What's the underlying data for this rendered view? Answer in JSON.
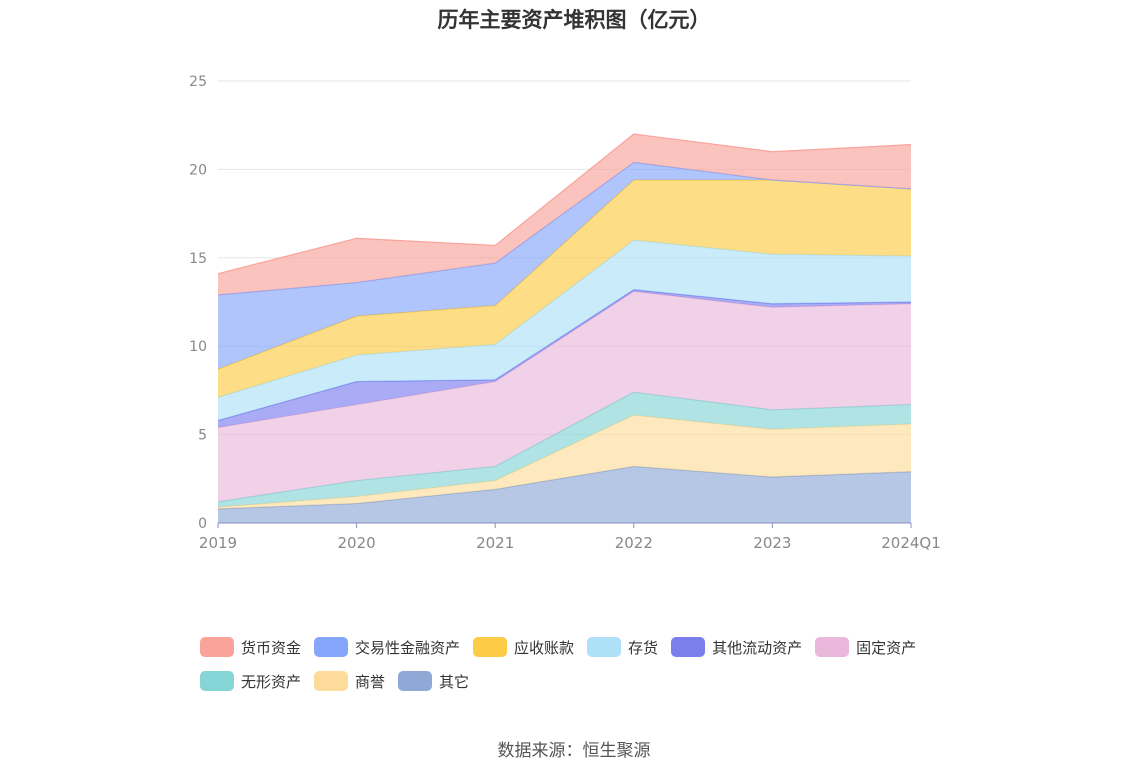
{
  "chart_data": {
    "type": "area",
    "stacked": true,
    "title": "历年主要资产堆积图（亿元）",
    "categories": [
      "2019",
      "2020",
      "2021",
      "2022",
      "2023",
      "2024Q1"
    ],
    "ylim": [
      0,
      25
    ],
    "yticks": [
      0,
      5,
      10,
      15,
      20,
      25
    ],
    "series": [
      {
        "name": "其它",
        "color": "#8fa9d7",
        "values": [
          0.8,
          1.1,
          1.9,
          3.2,
          2.6,
          2.9
        ]
      },
      {
        "name": "商誉",
        "color": "#fddb9a",
        "values": [
          0.1,
          0.4,
          0.5,
          2.9,
          2.7,
          2.7
        ]
      },
      {
        "name": "无形资产",
        "color": "#86d5d6",
        "values": [
          0.3,
          0.9,
          0.8,
          1.3,
          1.1,
          1.1
        ]
      },
      {
        "name": "固定资产",
        "color": "#e9b8da",
        "values": [
          4.2,
          4.3,
          4.8,
          5.7,
          5.8,
          5.7
        ]
      },
      {
        "name": "其他流动资产",
        "color": "#7b7fee",
        "values": [
          0.4,
          1.3,
          0.1,
          0.1,
          0.2,
          0.1
        ]
      },
      {
        "name": "存货",
        "color": "#aee0f7",
        "values": [
          1.3,
          1.5,
          2.0,
          2.8,
          2.8,
          2.6
        ]
      },
      {
        "name": "应收账款",
        "color": "#fecb47",
        "values": [
          1.6,
          2.2,
          2.2,
          3.4,
          4.2,
          3.8
        ]
      },
      {
        "name": "交易性金融资产",
        "color": "#86a6fb",
        "values": [
          4.2,
          1.9,
          2.4,
          1.0,
          0.0,
          0.0
        ]
      },
      {
        "name": "货币资金",
        "color": "#f9a39b",
        "values": [
          1.2,
          2.5,
          1.0,
          1.6,
          1.6,
          2.5
        ]
      }
    ],
    "legend_order": [
      "货币资金",
      "交易性金融资产",
      "应收账款",
      "存货",
      "其他流动资产",
      "固定资产",
      "无形资产",
      "商誉",
      "其它"
    ],
    "source": "数据来源：恒生聚源"
  }
}
